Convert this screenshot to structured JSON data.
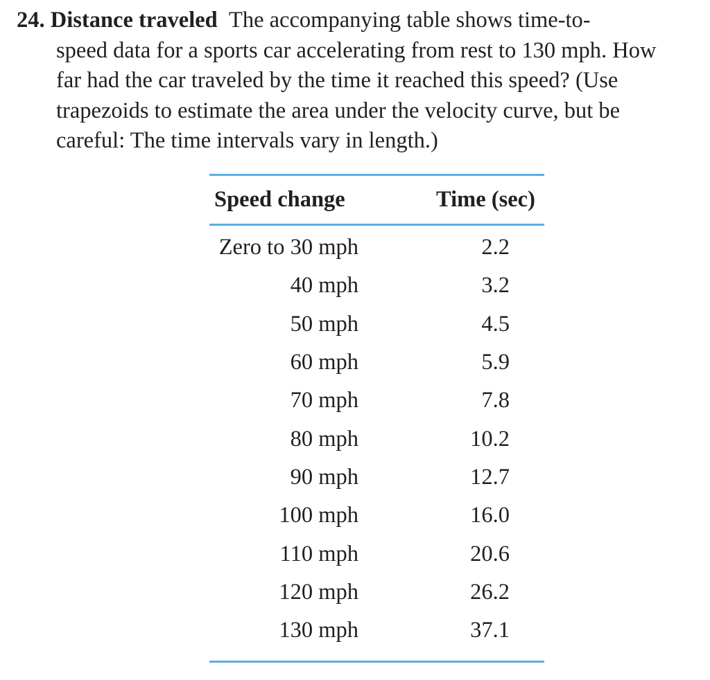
{
  "problem": {
    "number": "24.",
    "title": "Distance traveled",
    "lines": [
      "The accompanying table shows time-to-",
      "speed data for a sports car accelerating from rest to 130 mph. How",
      "far had the car traveled by the time it reached this speed? (Use",
      "trapezoids to estimate the area under the velocity curve, but be",
      "careful: The time intervals vary in length.)"
    ]
  },
  "table": {
    "headers": [
      "Speed change",
      "Time (sec)"
    ],
    "rows": [
      {
        "speed": "Zero to 30 mph",
        "time": "2.2"
      },
      {
        "speed": "40 mph",
        "time": "3.2"
      },
      {
        "speed": "50 mph",
        "time": "4.5"
      },
      {
        "speed": "60 mph",
        "time": "5.9"
      },
      {
        "speed": "70 mph",
        "time": "7.8"
      },
      {
        "speed": "80 mph",
        "time": "10.2"
      },
      {
        "speed": "90 mph",
        "time": "12.7"
      },
      {
        "speed": "100 mph",
        "time": "16.0"
      },
      {
        "speed": "110 mph",
        "time": "20.6"
      },
      {
        "speed": "120 mph",
        "time": "26.2"
      },
      {
        "speed": "130 mph",
        "time": "37.1"
      }
    ],
    "rule_color": "#5aaee3"
  }
}
